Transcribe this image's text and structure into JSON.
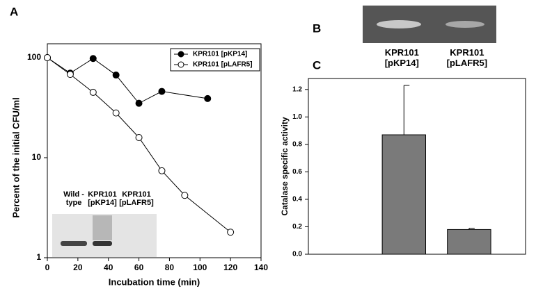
{
  "panel_labels": [
    "A",
    "B",
    "C"
  ],
  "chart_data": [
    {
      "type": "line",
      "x_label": "Incubation time (min)",
      "y_label": "Percent of the initial CFU/ml",
      "xlim": [
        0,
        140
      ],
      "xticks": [
        0,
        20,
        40,
        60,
        80,
        100,
        120,
        140
      ],
      "ylim": [
        1,
        100
      ],
      "yticks": [
        1,
        10,
        100
      ],
      "log_y": true,
      "legend": "upper right",
      "series": [
        {
          "name": "KPR101 [pKP14]",
          "color": "#000000",
          "marker": "filled",
          "x": [
            0,
            15,
            30,
            45,
            60,
            75,
            105
          ],
          "values": [
            100,
            70,
            98,
            67,
            35,
            46,
            39
          ]
        },
        {
          "name": "KPR101 [pLAFR5]",
          "color": "#000000",
          "marker": "open",
          "x": [
            0,
            15,
            30,
            45,
            60,
            75,
            90,
            120
          ],
          "values": [
            100,
            68,
            45,
            28,
            15.9,
            7.4,
            4.2,
            1.8
          ]
        }
      ],
      "inset_labels": [
        "Wild -type",
        "KPR101 [pKP14]",
        "KPR101 [pLAFR5]"
      ]
    },
    {
      "type": "bar",
      "y_label": "Catalase specific activity",
      "categories": [
        "KPR101 [pKP14]",
        "KPR101 [pLAFR5]"
      ],
      "values": [
        0.87,
        0.18
      ],
      "errors": [
        0.36,
        0.01
      ],
      "color": "#7a7a7a",
      "ylim": [
        0,
        1.28
      ],
      "yticks": [
        {
          "value": 0,
          "label": "0.0"
        },
        0.2,
        0.4,
        0.6,
        0.8,
        {
          "value": 1,
          "label": "1.0"
        },
        1.2
      ]
    }
  ]
}
